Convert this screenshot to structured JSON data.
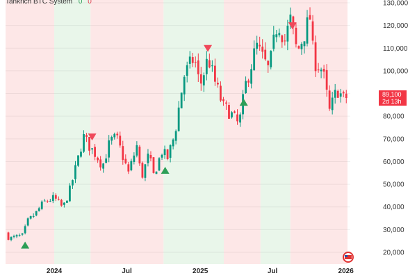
{
  "chart_data": {
    "type": "candlestick",
    "title": "Tankrich BTC System",
    "legend_values": [
      "0",
      "0"
    ],
    "y_axis": {
      "ticks": [
        "130,000",
        "120,000",
        "110,000",
        "100,000",
        "90,000",
        "80,000",
        "70,000",
        "60,000",
        "50,000",
        "40,000",
        "30,000",
        "20,000"
      ],
      "ylim": [
        15000,
        131000
      ],
      "position": "right"
    },
    "x_axis": {
      "ticks": [
        "2024",
        "Jul",
        "2025",
        "Jul",
        "2026"
      ]
    },
    "last_price": "89,100",
    "countdown": "2d 13h",
    "regimes": [
      {
        "start": "2023-09-01",
        "end": "2024-01-01",
        "state": "bearish"
      },
      {
        "start": "2024-01-01",
        "end": "2024-04-01",
        "state": "bullish"
      },
      {
        "start": "2024-04-01",
        "end": "2024-10-01",
        "state": "bearish"
      },
      {
        "start": "2024-10-01",
        "end": "2025-03-01",
        "state": "bullish"
      },
      {
        "start": "2025-03-01",
        "end": "2025-06-01",
        "state": "bearish"
      },
      {
        "start": "2025-06-01",
        "end": "2025-08-15",
        "state": "bullish"
      },
      {
        "start": "2025-08-15",
        "end": "2026-01-05",
        "state": "bearish"
      }
    ],
    "signals": [
      {
        "date": "2023-10-20",
        "type": "buy",
        "price": 25000
      },
      {
        "date": "2024-04-05",
        "type": "sell",
        "price": 69000
      },
      {
        "date": "2024-10-05",
        "type": "buy",
        "price": 58000
      },
      {
        "date": "2025-01-20",
        "type": "sell",
        "price": 108000
      },
      {
        "date": "2025-04-20",
        "type": "buy",
        "price": 88000
      },
      {
        "date": "2025-08-20",
        "type": "sell",
        "price": 118000
      }
    ],
    "price_path": [
      [
        "2023-09-01",
        28500
      ],
      [
        "2023-09-10",
        26000
      ],
      [
        "2023-10-01",
        27000
      ],
      [
        "2023-10-15",
        27500
      ],
      [
        "2023-10-25",
        33500
      ],
      [
        "2023-11-15",
        37000
      ],
      [
        "2023-12-05",
        42000
      ],
      [
        "2024-01-01",
        44000
      ],
      [
        "2024-01-23",
        39500
      ],
      [
        "2024-02-10",
        48000
      ],
      [
        "2024-02-28",
        60000
      ],
      [
        "2024-03-14",
        71000
      ],
      [
        "2024-04-01",
        66000
      ],
      [
        "2024-04-15",
        63000
      ],
      [
        "2024-05-01",
        58000
      ],
      [
        "2024-05-20",
        69000
      ],
      [
        "2024-06-05",
        70500
      ],
      [
        "2024-07-05",
        55000
      ],
      [
        "2024-07-28",
        68000
      ],
      [
        "2024-08-05",
        52000
      ],
      [
        "2024-08-25",
        63000
      ],
      [
        "2024-09-06",
        54000
      ],
      [
        "2024-09-28",
        65000
      ],
      [
        "2024-10-10",
        61000
      ],
      [
        "2024-10-29",
        72000
      ],
      [
        "2024-11-12",
        88000
      ],
      [
        "2024-11-22",
        98000
      ],
      [
        "2024-12-17",
        106000
      ],
      [
        "2024-12-31",
        93000
      ],
      [
        "2025-01-21",
        106000
      ],
      [
        "2025-02-03",
        97000
      ],
      [
        "2025-02-28",
        84000
      ],
      [
        "2025-03-15",
        82000
      ],
      [
        "2025-04-08",
        76000
      ],
      [
        "2025-04-25",
        94000
      ],
      [
        "2025-05-22",
        111000
      ],
      [
        "2025-06-22",
        100000
      ],
      [
        "2025-07-14",
        122000
      ],
      [
        "2025-08-02",
        113000
      ],
      [
        "2025-08-14",
        123000
      ],
      [
        "2025-09-01",
        108000
      ],
      [
        "2025-09-20",
        117000
      ],
      [
        "2025-10-06",
        125000
      ],
      [
        "2025-10-11",
        105000
      ],
      [
        "2025-11-04",
        100000
      ],
      [
        "2025-11-21",
        82000
      ],
      [
        "2025-12-10",
        92000
      ],
      [
        "2025-12-28",
        87000
      ],
      [
        "2026-01-05",
        89100
      ]
    ]
  }
}
